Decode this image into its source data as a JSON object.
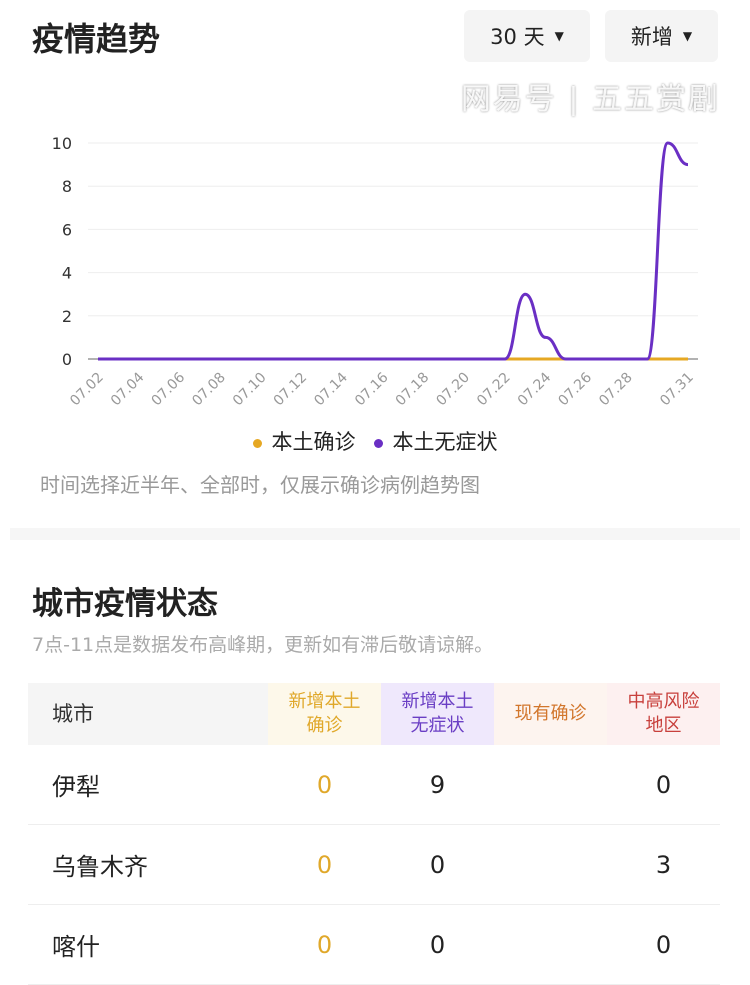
{
  "header": {
    "title": "疫情趋势",
    "range_select": "30 天",
    "type_select": "新增"
  },
  "chart_data": {
    "type": "line",
    "x": [
      "07.02",
      "07.03",
      "07.04",
      "07.05",
      "07.06",
      "07.07",
      "07.08",
      "07.09",
      "07.10",
      "07.11",
      "07.12",
      "07.13",
      "07.14",
      "07.15",
      "07.16",
      "07.17",
      "07.18",
      "07.19",
      "07.20",
      "07.21",
      "07.22",
      "07.23",
      "07.24",
      "07.25",
      "07.26",
      "07.27",
      "07.28",
      "07.29",
      "07.30",
      "07.31"
    ],
    "xticks": [
      "07.02",
      "07.04",
      "07.06",
      "07.08",
      "07.10",
      "07.12",
      "07.14",
      "07.16",
      "07.18",
      "07.20",
      "07.22",
      "07.24",
      "07.26",
      "07.28",
      "07.31"
    ],
    "yticks": [
      "0",
      "2",
      "4",
      "6",
      "8",
      "10"
    ],
    "ylim": [
      0,
      10
    ],
    "grid": true,
    "legend_position": "bottom",
    "series": [
      {
        "name": "本土确诊",
        "color": "#e6a823",
        "values": [
          0,
          0,
          0,
          0,
          0,
          0,
          0,
          0,
          0,
          0,
          0,
          0,
          0,
          0,
          0,
          0,
          0,
          0,
          0,
          0,
          0,
          0,
          0,
          0,
          0,
          0,
          0,
          0,
          0,
          0
        ]
      },
      {
        "name": "本土无症状",
        "color": "#6a2fc4",
        "values": [
          0,
          0,
          0,
          0,
          0,
          0,
          0,
          0,
          0,
          0,
          0,
          0,
          0,
          0,
          0,
          0,
          0,
          0,
          0,
          0,
          0,
          3,
          1,
          0,
          0,
          0,
          0,
          0,
          10,
          9
        ]
      }
    ]
  },
  "chart_note": "时间选择近半年、全部时，仅展示确诊病例趋势图",
  "city": {
    "title": "城市疫情状态",
    "subtitle": "7点-11点是数据发布高峰期，更新如有滞后敬请谅解。",
    "headers": [
      "城市",
      "新增本土\n确诊",
      "新增本土\n无症状",
      "现有确诊",
      "中高风险\n地区"
    ],
    "rows": [
      [
        "伊犁",
        "0",
        "9",
        "",
        "0"
      ],
      [
        "乌鲁木齐",
        "0",
        "0",
        "",
        "3"
      ],
      [
        "喀什",
        "0",
        "0",
        "",
        "0"
      ]
    ]
  },
  "watermark": "网易号 | 五五赏剧"
}
